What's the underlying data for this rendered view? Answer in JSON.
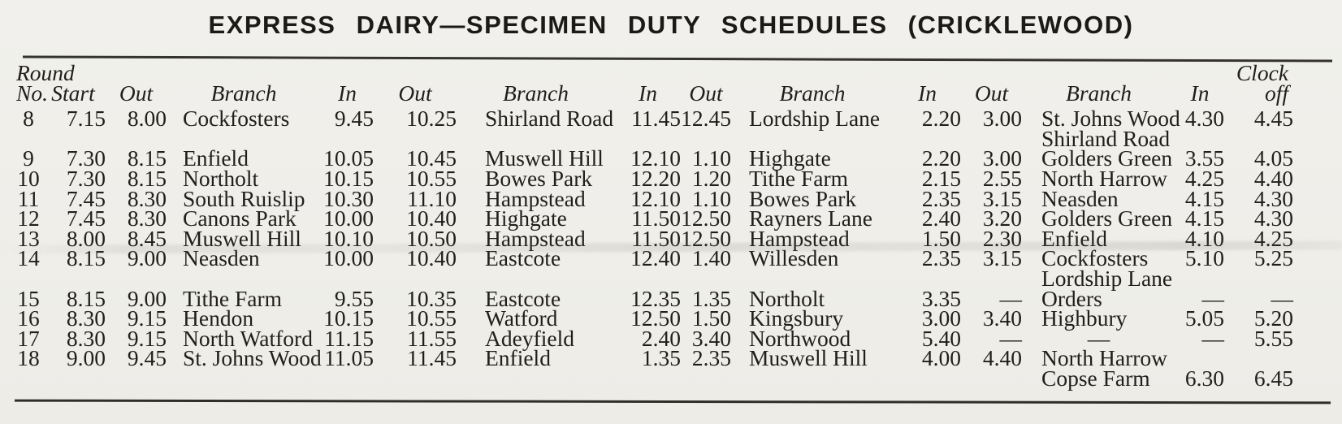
{
  "title": "EXPRESS DAIRY—SPECIMEN DUTY SCHEDULES (CRICKLEWOOD)",
  "colors": {
    "paper": "#f0efea",
    "ink": "#211f1c",
    "rule": "#35332f"
  },
  "table": {
    "header": {
      "line1_round": "Round",
      "line1_clock": "Clock",
      "line2": [
        "No.",
        "Start",
        "Out",
        "Branch",
        "In",
        "Out",
        "Branch",
        "In",
        "Out",
        "Branch",
        "In",
        "Out",
        "Branch",
        "In",
        "off"
      ]
    },
    "rows": [
      [
        "8",
        "7.15",
        "8.00",
        "Cockfosters",
        "9.45",
        "10.25",
        "Shirland Road",
        "11.45",
        "12.45",
        "Lordship Lane",
        "2.20",
        "3.00",
        "St. Johns Wood",
        "4.30",
        "4.45"
      ],
      [
        "",
        "",
        "",
        "",
        "",
        "",
        "",
        "",
        "",
        "",
        "",
        "",
        "Shirland Road",
        "",
        ""
      ],
      [
        "9",
        "7.30",
        "8.15",
        "Enfield",
        "10.05",
        "10.45",
        "Muswell Hill",
        "12.10",
        "1.10",
        "Highgate",
        "2.20",
        "3.00",
        "Golders Green",
        "3.55",
        "4.05"
      ],
      [
        "10",
        "7.30",
        "8.15",
        "Northolt",
        "10.15",
        "10.55",
        "Bowes Park",
        "12.20",
        "1.20",
        "Tithe Farm",
        "2.15",
        "2.55",
        "North Harrow",
        "4.25",
        "4.40"
      ],
      [
        "11",
        "7.45",
        "8.30",
        "South Ruislip",
        "10.30",
        "11.10",
        "Hampstead",
        "12.10",
        "1.10",
        "Bowes Park",
        "2.35",
        "3.15",
        "Neasden",
        "4.15",
        "4.30"
      ],
      [
        "12",
        "7.45",
        "8.30",
        "Canons Park",
        "10.00",
        "10.40",
        "Highgate",
        "11.50",
        "12.50",
        "Rayners Lane",
        "2.40",
        "3.20",
        "Golders Green",
        "4.15",
        "4.30"
      ],
      [
        "13",
        "8.00",
        "8.45",
        "Muswell Hill",
        "10.10",
        "10.50",
        "Hampstead",
        "11.50",
        "12.50",
        "Hampstead",
        "1.50",
        "2.30",
        "Enfield",
        "4.10",
        "4.25"
      ],
      [
        "14",
        "8.15",
        "9.00",
        "Neasden",
        "10.00",
        "10.40",
        "Eastcote",
        "12.40",
        "1.40",
        "Willesden",
        "2.35",
        "3.15",
        "Cockfosters",
        "5.10",
        "5.25"
      ],
      [
        "",
        "",
        "",
        "",
        "",
        "",
        "",
        "",
        "",
        "",
        "",
        "",
        "Lordship Lane",
        "",
        ""
      ],
      [
        "15",
        "8.15",
        "9.00",
        "Tithe Farm",
        "9.55",
        "10.35",
        "Eastcote",
        "12.35",
        "1.35",
        "Northolt",
        "3.35",
        "—",
        "Orders",
        "—",
        "—"
      ],
      [
        "16",
        "8.30",
        "9.15",
        "Hendon",
        "10.15",
        "10.55",
        "Watford",
        "12.50",
        "1.50",
        "Kingsbury",
        "3.00",
        "3.40",
        "Highbury",
        "5.05",
        "5.20"
      ],
      [
        "17",
        "8.30",
        "9.15",
        "North Watford",
        "11.15",
        "11.55",
        "Adeyfield",
        "2.40",
        "3.40",
        "Northwood",
        "5.40",
        "—",
        "—",
        "—",
        "5.55"
      ],
      [
        "18",
        "9.00",
        "9.45",
        "St. Johns Wood",
        "11.05",
        "11.45",
        "Enfield",
        "1.35",
        "2.35",
        "Muswell Hill",
        "4.00",
        "4.40",
        "North Harrow",
        "",
        ""
      ],
      [
        "",
        "",
        "",
        "",
        "",
        "",
        "",
        "",
        "",
        "",
        "",
        "",
        "Copse Farm",
        "6.30",
        "6.45"
      ]
    ]
  }
}
